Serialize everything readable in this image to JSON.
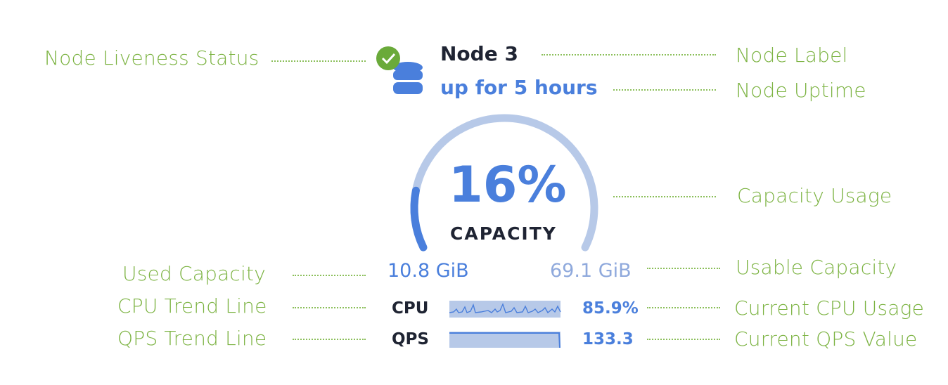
{
  "node": {
    "label": "Node 3",
    "uptime": "up for 5 hours",
    "liveness_icon": "check-circle-icon",
    "node_icon": "database-icon",
    "capacity_percent_text": "16%",
    "capacity_percent": 16,
    "capacity_label": "CAPACITY",
    "used_capacity": "10.8 GiB",
    "usable_capacity": "69.1 GiB",
    "cpu_label": "CPU",
    "cpu_value": "85.9%",
    "qps_label": "QPS",
    "qps_value": "133.3"
  },
  "annotations": {
    "liveness": "Node Liveness Status",
    "label": "Node Label",
    "uptime": "Node Uptime",
    "capacity_usage": "Capacity Usage",
    "used_capacity": "Used Capacity",
    "usable_capacity": "Usable Capacity",
    "cpu_trend": "CPU Trend Line",
    "cpu_current": "Current CPU Usage",
    "qps_trend": "QPS Trend Line",
    "qps_current": "Current QPS Value"
  },
  "colors": {
    "accent": "#4a7fdc",
    "accent_light": "#b7c9e8",
    "annotation": "#7cb342",
    "status_ok": "#6aaa3a"
  }
}
